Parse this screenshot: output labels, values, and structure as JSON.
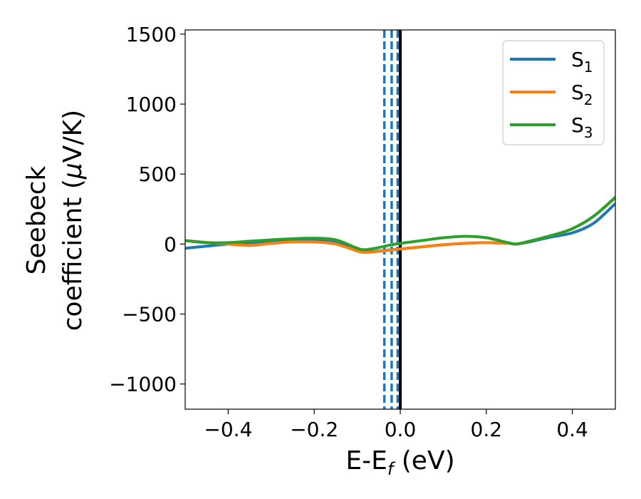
{
  "chart_data": {
    "type": "line",
    "xlabel": "E-E",
    "xlabel_sub": "f",
    "xlabel_unit": " (eV)",
    "ylabel_line1": "Seebeck",
    "ylabel_line2": "coefficient  (",
    "ylabel_mu": "μ",
    "ylabel_unit": "V/K)",
    "xlim": [
      -0.5,
      0.5
    ],
    "ylim": [
      -1180,
      1530
    ],
    "xticks": [
      -0.4,
      -0.2,
      0.0,
      0.2,
      0.4
    ],
    "xtick_labels": [
      "−0.4",
      "−0.2",
      "0.0",
      "0.2",
      "0.4"
    ],
    "yticks": [
      -1000,
      -500,
      0,
      500,
      1000,
      1500
    ],
    "ytick_labels": [
      "−1000",
      "−500",
      "0",
      "500",
      "1000",
      "1500"
    ],
    "grid": false,
    "legend": {
      "position": "top-right"
    },
    "series": [
      {
        "name": "S",
        "name_sub": "1",
        "color": "#1f77b4",
        "x": [
          -0.5,
          -0.45,
          -0.4,
          -0.35,
          -0.3,
          -0.25,
          -0.2,
          -0.15,
          -0.1,
          -0.08,
          -0.05,
          -0.02,
          0.0,
          0.05,
          0.1,
          0.15,
          0.2,
          0.25,
          0.27,
          0.3,
          0.35,
          0.4,
          0.45,
          0.5
        ],
        "y": [
          -30,
          -15,
          0,
          10,
          20,
          25,
          25,
          10,
          -40,
          -55,
          -50,
          -40,
          -35,
          -20,
          -5,
          5,
          10,
          5,
          0,
          15,
          50,
          80,
          150,
          290
        ]
      },
      {
        "name": "S",
        "name_sub": "2",
        "color": "#ff7f0e",
        "x": [
          -0.5,
          -0.45,
          -0.4,
          -0.35,
          -0.3,
          -0.25,
          -0.2,
          -0.15,
          -0.1,
          -0.08,
          -0.05,
          -0.02,
          0.0,
          0.05,
          0.1,
          0.15,
          0.2,
          0.25,
          0.27,
          0.3,
          0.35,
          0.4,
          0.45,
          0.5
        ],
        "y": [
          25,
          12,
          0,
          -10,
          5,
          15,
          15,
          0,
          -50,
          -60,
          -52,
          -42,
          -35,
          -20,
          -5,
          5,
          10,
          5,
          0,
          20,
          60,
          110,
          200,
          330
        ]
      },
      {
        "name": "S",
        "name_sub": "3",
        "color": "#2ca02c",
        "x": [
          -0.5,
          -0.45,
          -0.4,
          -0.35,
          -0.3,
          -0.25,
          -0.2,
          -0.15,
          -0.1,
          -0.08,
          -0.05,
          -0.02,
          0.0,
          0.05,
          0.1,
          0.15,
          0.2,
          0.25,
          0.27,
          0.3,
          0.35,
          0.4,
          0.45,
          0.5
        ],
        "y": [
          25,
          10,
          10,
          20,
          30,
          38,
          42,
          30,
          -30,
          -40,
          -25,
          -5,
          5,
          25,
          45,
          55,
          45,
          10,
          0,
          20,
          60,
          110,
          200,
          335
        ]
      }
    ],
    "vlines": [
      {
        "x": -0.037,
        "style": "dashed",
        "color": "#1f77b4"
      },
      {
        "x": -0.02,
        "style": "dashed",
        "color": "#1f77b4"
      },
      {
        "x": -0.006,
        "style": "dashed",
        "color": "#1f77b4"
      },
      {
        "x": 0.0,
        "style": "solid",
        "color": "#000000"
      }
    ]
  }
}
